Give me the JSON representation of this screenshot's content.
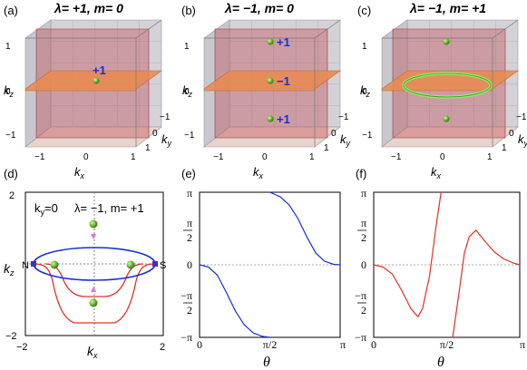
{
  "panels": {
    "a": {
      "label": "(a)",
      "title": "λ= +1, m= 0",
      "charges": [
        "+1"
      ]
    },
    "b": {
      "label": "(b)",
      "title": "λ= −1, m= 0",
      "charges": [
        "+1",
        "−1",
        "+1"
      ]
    },
    "c": {
      "label": "(c)",
      "title": "λ= −1, m= +1",
      "charges": []
    },
    "d": {
      "label": "(d)",
      "ky": "kᵧ=0",
      "ky_k": "k",
      "ky_sub": "y",
      "ky_val": "=0",
      "title": "λ= −1, m= +1",
      "pole_n": "N",
      "pole_s": "S",
      "xticks": [
        "−2",
        "2"
      ],
      "yticks": [
        "2",
        "−2"
      ],
      "xlabel_k": "k",
      "xlabel_sub": "x",
      "ylabel_k": "k",
      "ylabel_sub": "z"
    },
    "e": {
      "label": "(e)",
      "xlabel": "θ",
      "xticks": [
        "0",
        "π/2",
        "π"
      ]
    },
    "f": {
      "label": "(f)",
      "xlabel": "θ",
      "xticks": [
        "0",
        "π/2",
        "π"
      ]
    }
  },
  "cube_axis": {
    "kx_k": "k",
    "kx_sub": "x",
    "ky_k": "k",
    "ky_sub": "y",
    "kz_k": "k",
    "kz_sub": "z",
    "ticks_x": [
      "−1",
      "0",
      "1"
    ],
    "ticks_y": [
      "−1",
      "0",
      "1"
    ],
    "ticks_z": [
      "1",
      "0",
      "−1"
    ]
  },
  "phase_axis": {
    "top": "π",
    "half_num": "π",
    "half_den": "2",
    "zero": "0",
    "neg_half_num": "−π",
    "neg_half_den": "2",
    "bottom": "−π"
  },
  "colors": {
    "plane": "#e98a4e",
    "wall": "#c0444e",
    "ball": "#6cbb2e",
    "ring": "#8ef26a",
    "blue": "#1a2fd4",
    "red": "#e0302a",
    "magenta": "#e070e8"
  },
  "chart_data": [
    {
      "type": "line",
      "panel": "e",
      "xlim": [
        0,
        3.1416
      ],
      "ylim": [
        -3.1416,
        3.1416
      ],
      "series": [
        {
          "x": [
            0,
            0.2,
            0.4,
            0.6,
            0.8,
            1.0,
            1.2,
            1.4,
            1.5708
          ],
          "y": [
            0,
            -0.1,
            -0.45,
            -1.2,
            -2.0,
            -2.6,
            -2.95,
            -3.1,
            -3.1416
          ]
        },
        {
          "x": [
            1.5708,
            1.8,
            2.0,
            2.2,
            2.4,
            2.6,
            2.8,
            3.0,
            3.1416
          ],
          "y": [
            3.1416,
            2.95,
            2.6,
            2.0,
            1.2,
            0.5,
            0.15,
            0.02,
            0
          ]
        }
      ]
    },
    {
      "type": "line",
      "panel": "f",
      "xlim": [
        0,
        3.1416
      ],
      "ylim": [
        -3.1416,
        3.1416
      ],
      "series": [
        {
          "x": [
            0,
            0.2,
            0.4,
            0.6,
            0.8,
            0.95,
            1.05,
            1.2,
            1.35,
            1.45
          ],
          "y": [
            0,
            -0.1,
            -0.4,
            -1.1,
            -1.9,
            -2.25,
            -1.9,
            -0.5,
            1.8,
            3.1416
          ]
        },
        {
          "x": [
            1.7,
            1.85,
            1.95,
            2.05,
            2.2,
            2.4,
            2.6,
            2.8,
            3.0,
            3.1416
          ],
          "y": [
            -3.1416,
            -1.0,
            0.5,
            1.2,
            1.5,
            1.0,
            0.55,
            0.25,
            0.08,
            0
          ]
        }
      ]
    }
  ]
}
